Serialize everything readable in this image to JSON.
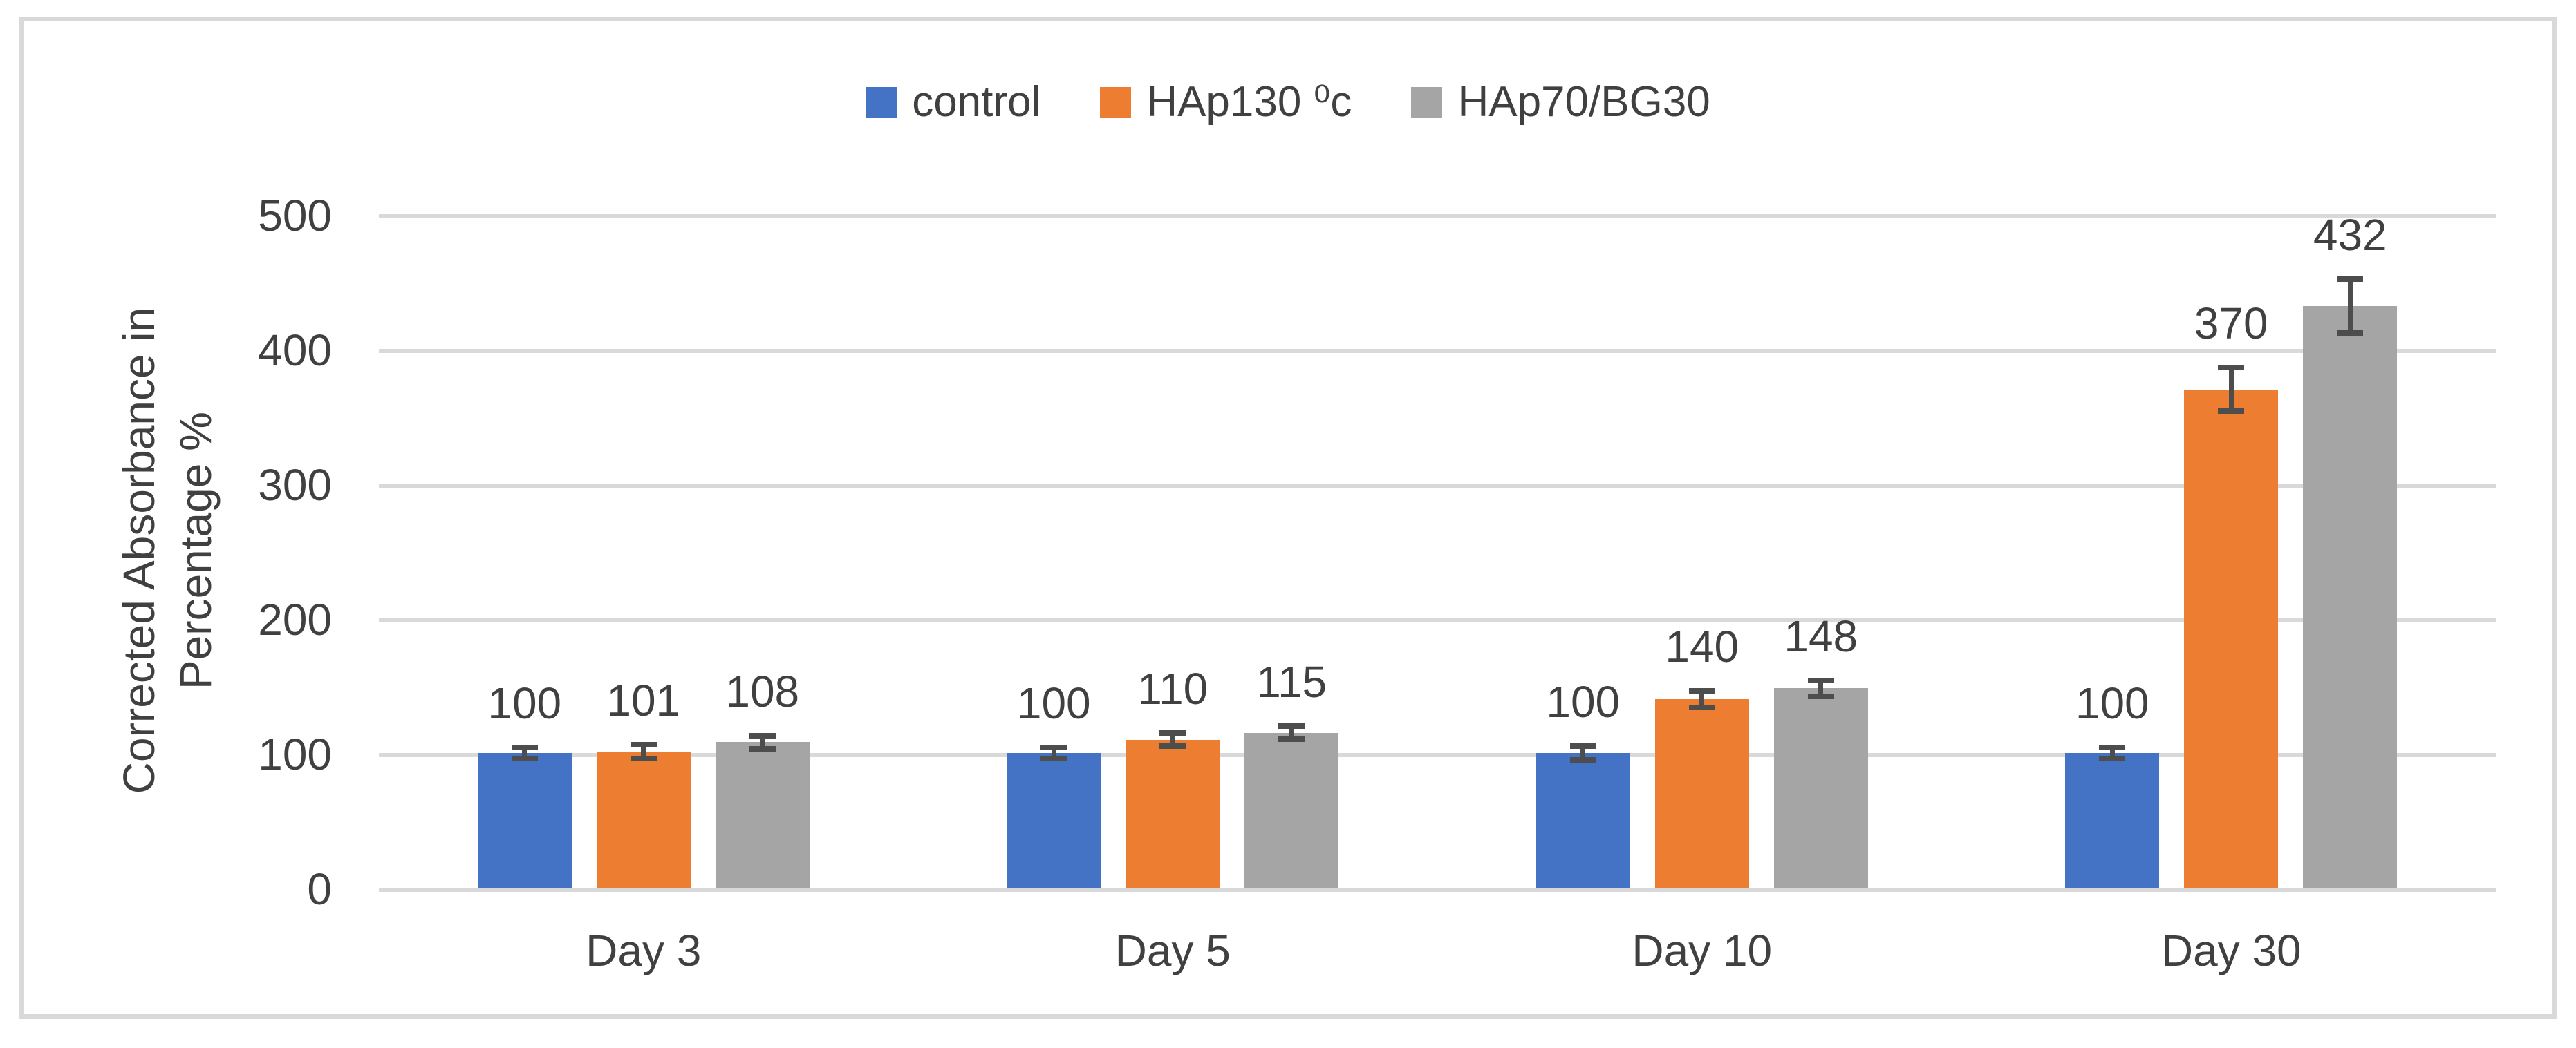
{
  "chart_data": {
    "type": "bar",
    "title": "",
    "categories": [
      "Day 3",
      "Day 5",
      "Day 10",
      "Day 30"
    ],
    "series": [
      {
        "name": "control",
        "color": "#4472C4",
        "values": [
          100,
          100,
          100,
          100
        ],
        "errors": [
          6,
          6,
          7,
          6
        ]
      },
      {
        "name": "HAp130 ⁰c",
        "color": "#ED7D31",
        "values": [
          101,
          110,
          140,
          370
        ],
        "errors": [
          7,
          7,
          8,
          18
        ]
      },
      {
        "name": "HAp70/BG30",
        "color": "#A5A5A5",
        "values": [
          108,
          115,
          148,
          432
        ],
        "errors": [
          7,
          7,
          8,
          22
        ]
      }
    ],
    "data_labels_shown": true,
    "data_labels": [
      [
        100,
        101,
        108
      ],
      [
        100,
        110,
        115
      ],
      [
        100,
        140,
        148
      ],
      [
        100,
        370,
        432
      ]
    ],
    "xlabel": "",
    "ylabel": "Corrected Absorbance in Percentage %",
    "ylabel_lines": [
      "Corrected Absorbance in",
      "Percentage %"
    ],
    "ylim": [
      0,
      500
    ],
    "ytick_step": 100,
    "ytick_labels": [
      "0",
      "100",
      "200",
      "300",
      "400",
      "500"
    ],
    "grid": true,
    "error_bars": true,
    "legend_position": "top-center"
  },
  "colors": {
    "background": "#FFFFFF",
    "frame_border": "#D9D9D9",
    "gridline": "#D9D9D9",
    "text": "#404040",
    "error_bar": "#4D4D4D"
  }
}
